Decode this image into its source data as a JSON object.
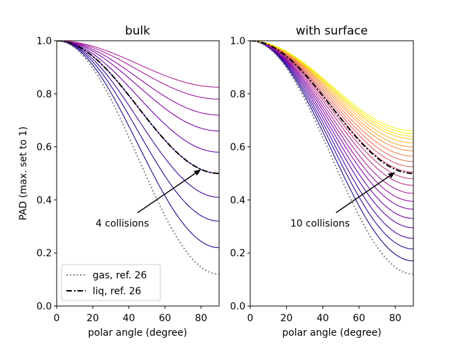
{
  "chart_data": [
    {
      "type": "line",
      "title": "bulk",
      "xlabel": "polar angle (degree)",
      "ylabel": "PAD (max. set to 1)",
      "xlim": [
        0,
        90
      ],
      "ylim": [
        0.0,
        1.0
      ],
      "xticks": [
        "0",
        "20",
        "40",
        "60",
        "80"
      ],
      "yticks": [
        "0.0",
        "0.2",
        "0.4",
        "0.6",
        "0.8",
        "1.0"
      ],
      "collision_curves_endpoints": [
        0.22,
        0.32,
        0.41,
        0.5,
        0.58,
        0.66,
        0.72,
        0.78,
        0.825
      ],
      "collision_colors": [
        "#0d0887",
        "#2a0593",
        "#41049d",
        "#5601a4",
        "#6a00a8",
        "#7e03a8",
        "#8f0da4",
        "#a01a9c",
        "#ab2494"
      ],
      "reference_curves": [
        {
          "name": "gas, ref. 26",
          "style": "dotted",
          "color": "#808080",
          "end_value": 0.12
        },
        {
          "name": "liq, ref. 26",
          "style": "dashdot",
          "color": "#000000",
          "end_value": 0.5
        }
      ],
      "annotation": {
        "text": "4 collisions",
        "points_to": [
          80,
          0.515
        ]
      }
    },
    {
      "type": "line",
      "title": "with surface",
      "xlabel": "polar angle (degree)",
      "ylabel": "",
      "xlim": [
        0,
        90
      ],
      "ylim": [
        0.0,
        1.0
      ],
      "xticks": [
        "0",
        "20",
        "40",
        "60",
        "80"
      ],
      "yticks": [
        "0.0",
        "0.2",
        "0.4",
        "0.6",
        "0.8",
        "1.0"
      ],
      "collision_curves_endpoints": [
        0.17,
        0.215,
        0.255,
        0.295,
        0.33,
        0.365,
        0.395,
        0.425,
        0.455,
        0.48,
        0.505,
        0.525,
        0.545,
        0.565,
        0.585,
        0.6,
        0.615,
        0.63,
        0.64,
        0.65,
        0.66
      ],
      "collision_colors": [
        "#0d0887",
        "#2c0594",
        "#43039e",
        "#5901a5",
        "#6e00a8",
        "#8305a7",
        "#9511a1",
        "#a72197",
        "#b6308b",
        "#c5407e",
        "#d14e72",
        "#dd5e66",
        "#e76e5b",
        "#f07f4f",
        "#f79044",
        "#fca338",
        "#feb72d",
        "#fccb26",
        "#f8df25",
        "#f3ee27",
        "#f0f921"
      ],
      "reference_curves": [
        {
          "name": "gas, ref. 26",
          "style": "dotted",
          "color": "#808080",
          "end_value": 0.12
        },
        {
          "name": "liq, ref. 26",
          "style": "dashdot",
          "color": "#000000",
          "end_value": 0.5
        }
      ],
      "annotation": {
        "text": "10 collisions",
        "points_to": [
          80,
          0.505
        ]
      }
    }
  ],
  "legend": [
    {
      "label": "gas, ref. 26",
      "style": "dotted",
      "color": "#808080"
    },
    {
      "label": "liq, ref. 26",
      "style": "dashdot",
      "color": "#000000"
    }
  ]
}
